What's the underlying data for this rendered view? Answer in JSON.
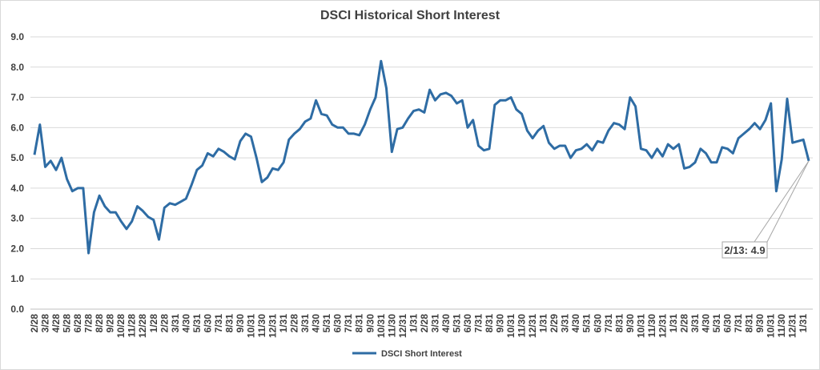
{
  "chart_data": {
    "type": "line",
    "title": "DSCI Historical Short Interest",
    "categories": [
      "2/28",
      null,
      "3/28",
      null,
      "4/28",
      null,
      "5/28",
      null,
      "6/28",
      null,
      "7/28",
      null,
      "8/28",
      null,
      "9/28",
      null,
      "10/28",
      null,
      "11/28",
      null,
      "12/28",
      null,
      "1/28",
      null,
      "2/28",
      null,
      "3/31",
      null,
      "4/30",
      null,
      "5/31",
      null,
      "6/30",
      null,
      "7/31",
      null,
      "8/31",
      null,
      "9/30",
      null,
      "10/31",
      null,
      "11/30",
      null,
      "12/31",
      null,
      "1/31",
      null,
      "2/28",
      null,
      "3/31",
      null,
      "4/30",
      null,
      "5/31",
      null,
      "6/30",
      null,
      "7/31",
      null,
      "8/31",
      null,
      "9/30",
      null,
      "10/31",
      null,
      "11/30",
      null,
      "12/31",
      null,
      "1/31",
      null,
      "2/28",
      null,
      "3/31",
      null,
      "4/30",
      null,
      "5/31",
      null,
      "6/30",
      null,
      "7/31",
      null,
      "8/31",
      null,
      "9/30",
      null,
      "10/31",
      null,
      "11/30",
      null,
      "12/31",
      null,
      "1/31",
      null,
      "2/29",
      null,
      "3/31",
      null,
      "4/30",
      null,
      "5/31",
      null,
      "6/30",
      null,
      "7/31",
      null,
      "8/31",
      null,
      "9/30",
      null,
      "10/31",
      null,
      "11/30",
      null,
      "12/31",
      null,
      "1/31",
      null,
      "2/28",
      null,
      "3/31",
      null,
      "4/30",
      null,
      "5/31",
      null,
      "6/30",
      null,
      "7/31",
      null,
      "8/31",
      null,
      "9/30",
      null,
      "10/31",
      null,
      "11/30",
      null,
      "12/31",
      null,
      "1/31",
      null
    ],
    "series": [
      {
        "name": "DSCI Short Interest",
        "color": "#2e6ca4",
        "values": [
          5.1,
          6.1,
          4.7,
          4.9,
          4.6,
          5.0,
          4.3,
          3.9,
          4.0,
          4.0,
          1.85,
          3.2,
          3.75,
          3.4,
          3.2,
          3.2,
          2.9,
          2.65,
          2.9,
          3.4,
          3.25,
          3.05,
          2.95,
          2.3,
          3.35,
          3.5,
          3.45,
          3.55,
          3.65,
          4.1,
          4.6,
          4.75,
          5.15,
          5.05,
          5.3,
          5.2,
          5.05,
          4.95,
          5.55,
          5.8,
          5.7,
          5.0,
          4.2,
          4.35,
          4.65,
          4.6,
          4.85,
          5.6,
          5.8,
          5.95,
          6.2,
          6.3,
          6.9,
          6.45,
          6.4,
          6.1,
          6.0,
          6.0,
          5.8,
          5.8,
          5.75,
          6.1,
          6.6,
          7.0,
          8.2,
          7.3,
          5.2,
          5.95,
          6.0,
          6.3,
          6.55,
          6.6,
          6.5,
          7.25,
          6.9,
          7.1,
          7.15,
          7.05,
          6.8,
          6.9,
          6.0,
          6.25,
          5.4,
          5.25,
          5.3,
          6.75,
          6.9,
          6.9,
          7.0,
          6.6,
          6.45,
          5.9,
          5.65,
          5.9,
          6.05,
          5.5,
          5.3,
          5.4,
          5.4,
          5.0,
          5.25,
          5.3,
          5.45,
          5.25,
          5.55,
          5.5,
          5.9,
          6.15,
          6.1,
          5.95,
          7.0,
          6.7,
          5.3,
          5.25,
          5.0,
          5.3,
          5.05,
          5.45,
          5.3,
          5.45,
          4.65,
          4.7,
          4.85,
          5.3,
          5.15,
          4.85,
          4.85,
          5.35,
          5.3,
          5.15,
          5.65,
          5.8,
          5.95,
          6.15,
          5.95,
          6.25,
          6.8,
          3.9,
          4.95,
          6.95,
          5.5,
          5.55,
          5.6,
          4.9
        ]
      }
    ],
    "annotation": "2/13: 4.9",
    "ylim": [
      0,
      9
    ],
    "yticks": [
      {
        "value": 0,
        "label": "0.0"
      },
      {
        "value": 1,
        "label": "1.0"
      },
      {
        "value": 2,
        "label": "2.0"
      },
      {
        "value": 3,
        "label": "3.0"
      },
      {
        "value": 4,
        "label": "4.0"
      },
      {
        "value": 5,
        "label": "5.0"
      },
      {
        "value": 6,
        "label": "6.0"
      },
      {
        "value": 7,
        "label": "7.0"
      },
      {
        "value": 8,
        "label": "8.0"
      },
      {
        "value": 9,
        "label": "9.0"
      }
    ],
    "grid": true,
    "legend": "bottom"
  }
}
